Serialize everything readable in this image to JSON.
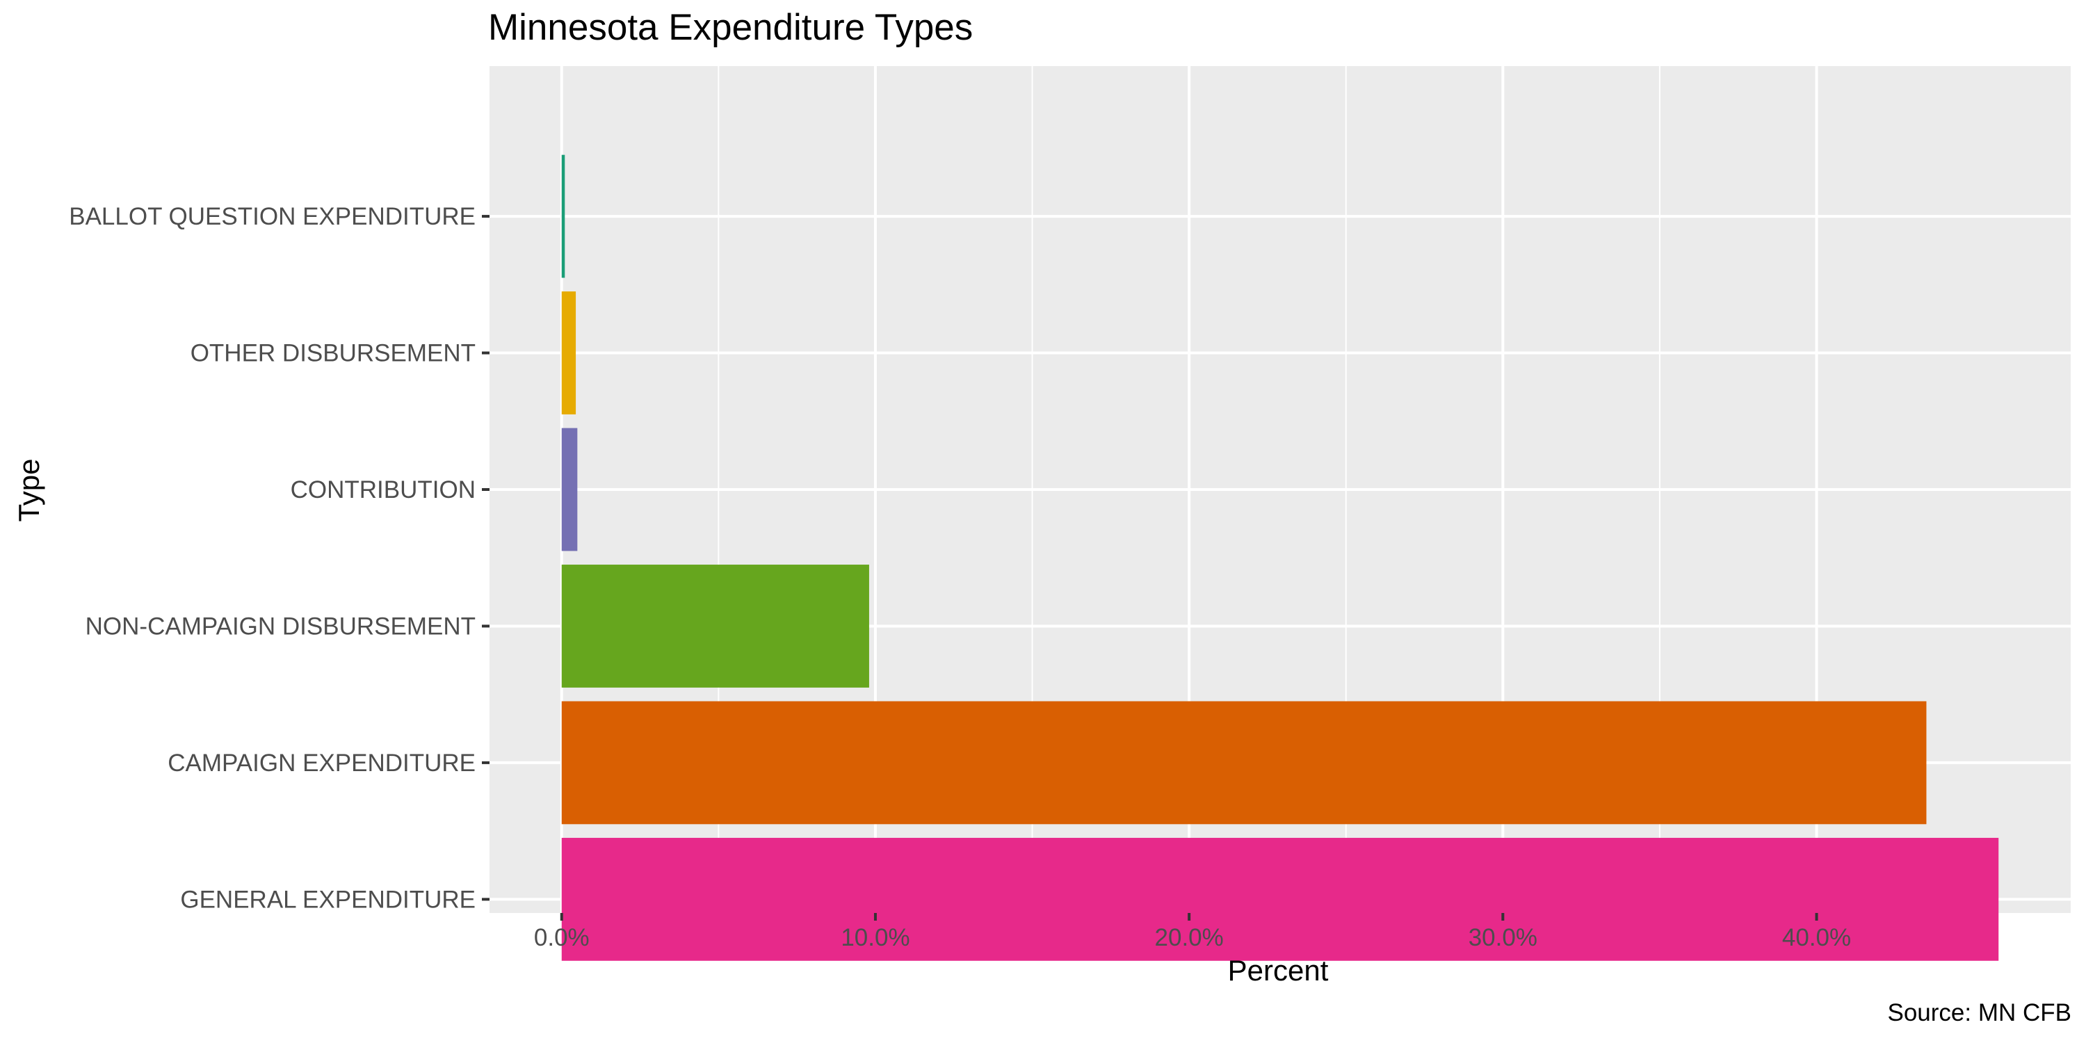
{
  "chart_data": {
    "type": "bar",
    "orientation": "horizontal",
    "title": "Minnesota Expenditure Types",
    "xlabel": "Percent",
    "ylabel": "Type",
    "caption": "Source: MN CFB",
    "categories": [
      "BALLOT QUESTION EXPENDITURE",
      "OTHER DISBURSEMENT",
      "CONTRIBUTION",
      "NON-CAMPAIGN DISBURSEMENT",
      "CAMPAIGN EXPENDITURE",
      "GENERAL EXPENDITURE"
    ],
    "values": [
      0.1,
      0.45,
      0.5,
      9.8,
      43.5,
      45.8
    ],
    "colors": [
      "#1B9E77",
      "#E6AB02",
      "#7570B3",
      "#66A61E",
      "#D95F02",
      "#E7298A"
    ],
    "xlim": [
      -2.3,
      48.1
    ],
    "xticks": [
      0,
      10,
      20,
      30,
      40
    ],
    "xtick_labels": [
      "0.0%",
      "10.0%",
      "20.0%",
      "30.0%",
      "40.0%"
    ],
    "grid": true,
    "legend": "none",
    "panel_background": "#EBEBEB",
    "grid_color": "#FFFFFF"
  }
}
